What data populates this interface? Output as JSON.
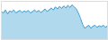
{
  "chart_data": {
    "type": "area",
    "values": [
      55,
      52,
      58,
      50,
      56,
      54,
      58,
      52,
      55,
      57,
      53,
      56,
      54,
      57,
      52,
      55,
      58,
      54,
      57,
      53,
      56,
      60,
      55,
      58,
      62,
      58,
      64,
      60,
      65,
      61,
      66,
      62,
      67,
      63,
      68,
      64,
      60,
      52,
      42,
      30,
      22,
      25,
      28,
      22,
      26,
      28,
      24,
      27,
      25,
      28,
      24,
      27
    ],
    "color": "#3d9fd3",
    "ylim": [
      0,
      75
    ],
    "tick_labels": false,
    "grid": false
  }
}
